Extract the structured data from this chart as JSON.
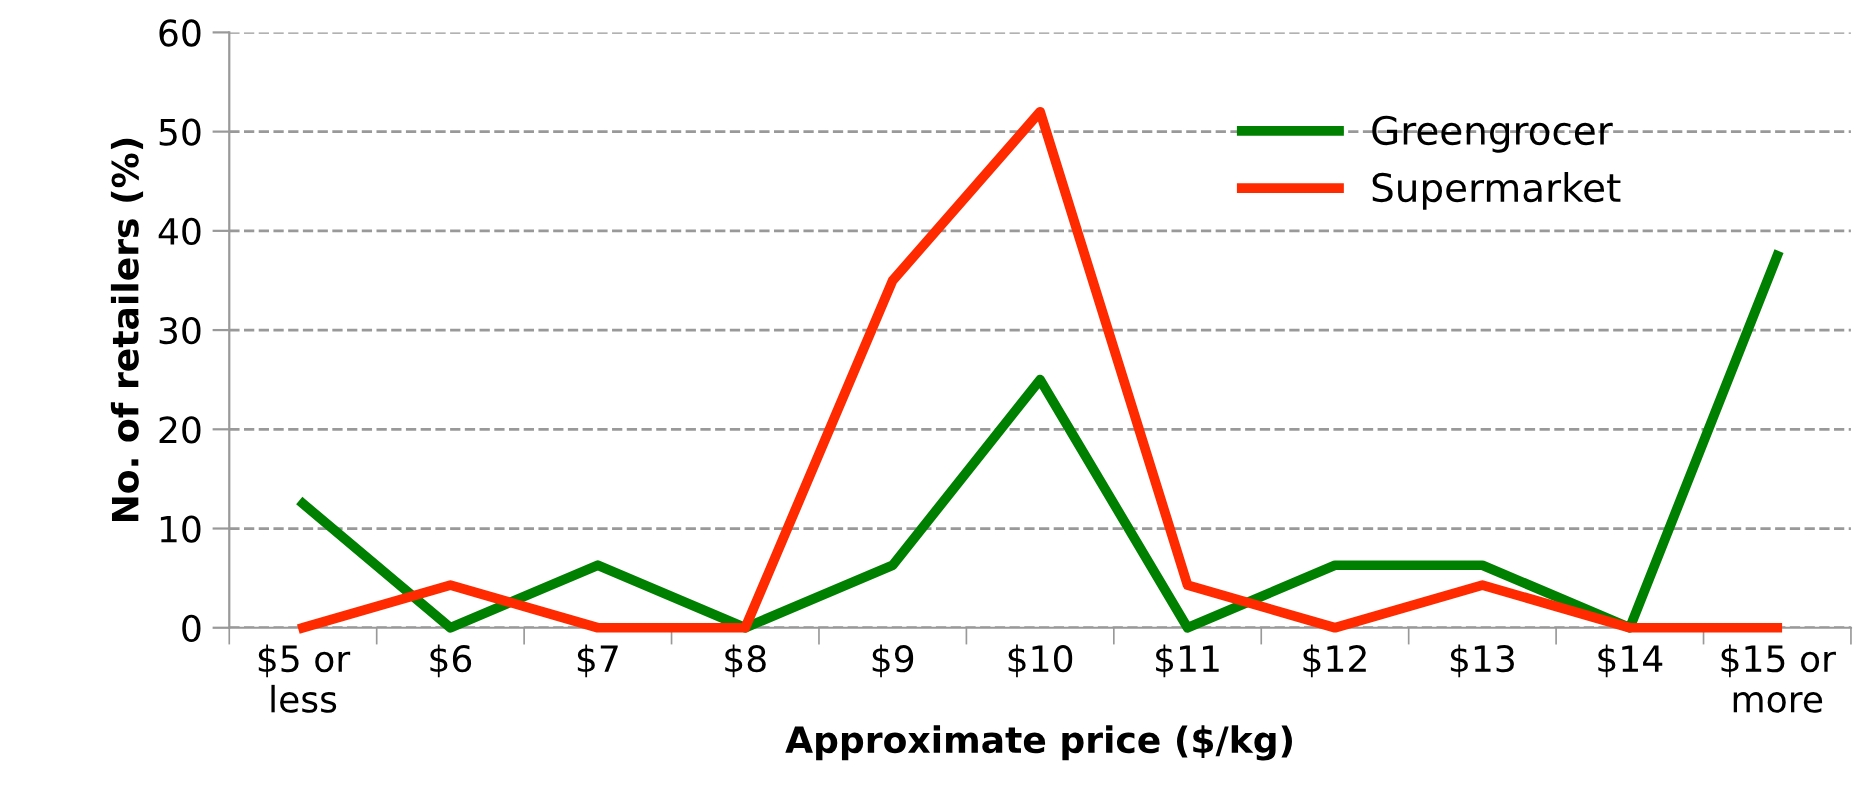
{
  "chart_data": {
    "type": "line",
    "xlabel": "Approximate price ($/kg)",
    "ylabel": "No. of retailers (%)",
    "categories": [
      "$5 or\nless",
      "$6",
      "$7",
      "$8",
      "$9",
      "$10",
      "$11",
      "$12",
      "$13",
      "$14",
      "$15 or\nmore"
    ],
    "series": [
      {
        "name": "Greengrocer",
        "color": "#008000",
        "values": [
          12.5,
          0,
          6.3,
          0,
          6.3,
          25,
          0,
          6.3,
          6.3,
          0,
          37.5
        ]
      },
      {
        "name": "Supermarket",
        "color": "#ff2a00",
        "values": [
          0,
          4.3,
          0,
          0,
          35,
          52,
          4.3,
          0,
          4.3,
          0,
          0
        ]
      }
    ],
    "ylim": [
      0,
      60
    ],
    "yticks": [
      0,
      10,
      20,
      30,
      40,
      50,
      60
    ],
    "grid": "y",
    "legend": "top right",
    "marker": "none",
    "line_style": "solid"
  }
}
